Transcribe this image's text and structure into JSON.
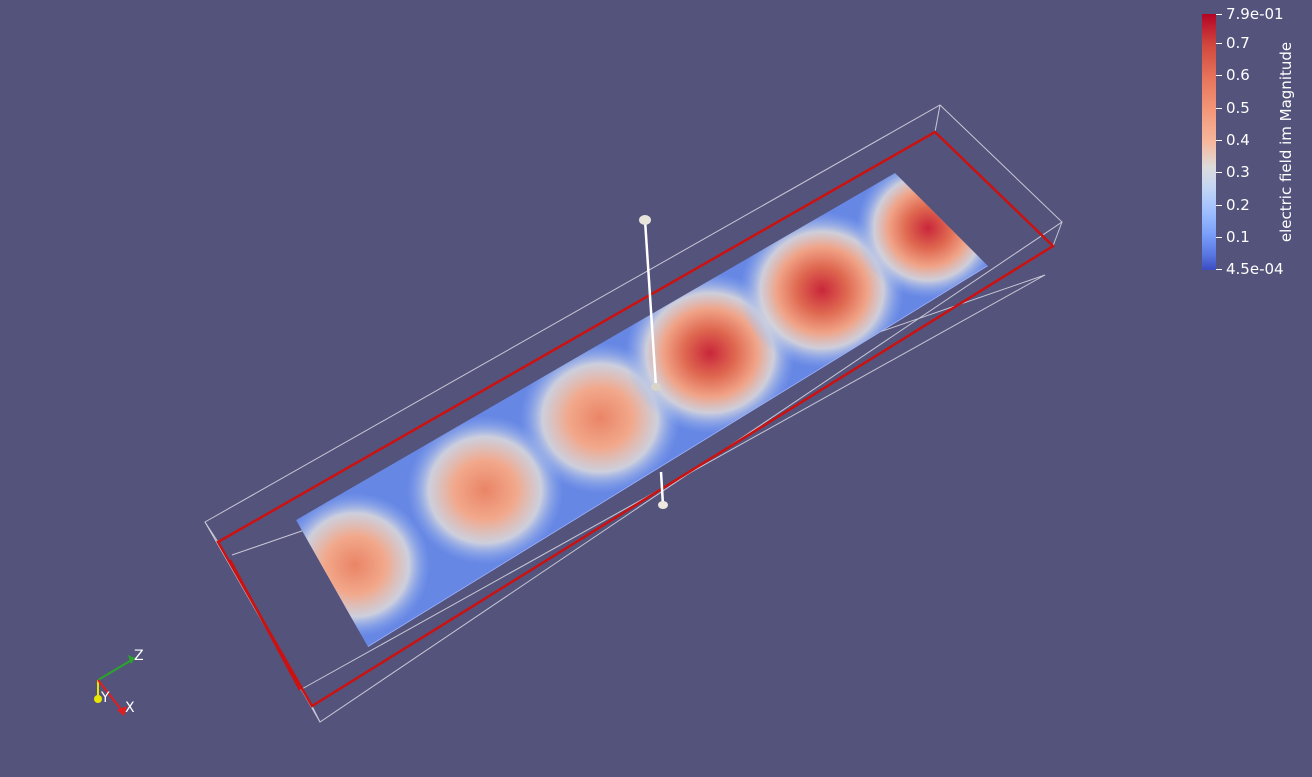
{
  "colorbar": {
    "title": "electric field im Magnitude",
    "labels": [
      "7.9e-01",
      "0.7",
      "0.6",
      "0.5",
      "0.4",
      "0.3",
      "0.2",
      "0.1",
      "4.5e-04"
    ]
  },
  "axes": {
    "x_label": "X",
    "y_label": "Y",
    "z_label": "Z"
  },
  "colors": {
    "background": "#54537c",
    "box_outline": "#c8c8d6",
    "red_frame": "#cc1111",
    "colormap_low": "#3b4cc0",
    "colormap_high": "#b40426",
    "x_axis": "#e01e1e",
    "y_axis": "#e6e600",
    "z_axis": "#2aa52a"
  }
}
